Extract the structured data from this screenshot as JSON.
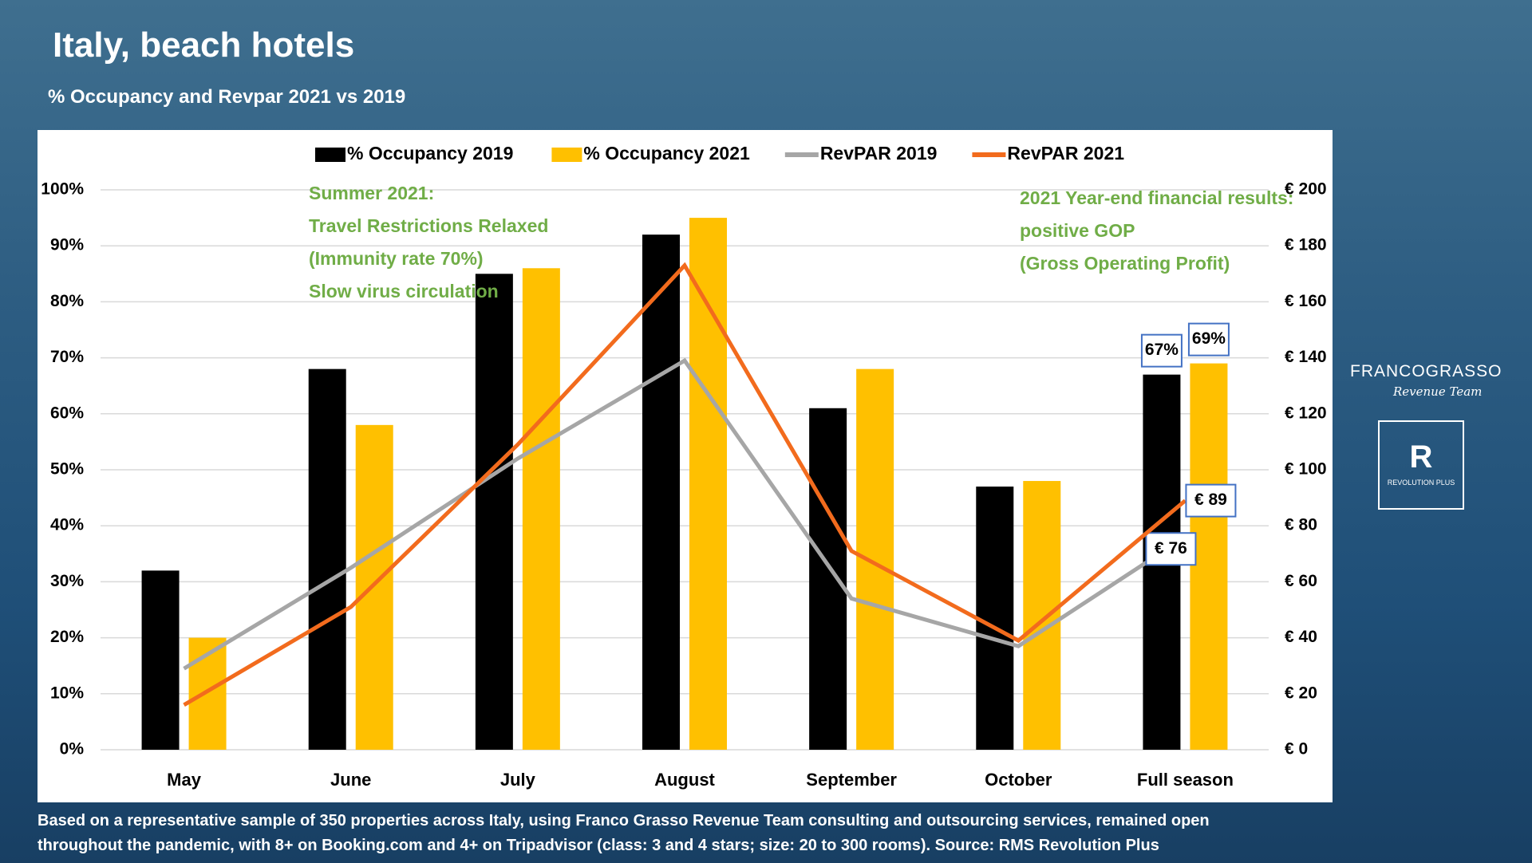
{
  "header": {
    "title": "Italy, beach hotels",
    "subtitle": "% Occupancy and Revpar 2021 vs 2019"
  },
  "chart_data": {
    "type": "bar",
    "categories": [
      "May",
      "June",
      "July",
      "August",
      "September",
      "October",
      "Full season"
    ],
    "series": [
      {
        "name": "% Occupancy 2019",
        "type": "bar",
        "color": "#000000",
        "values": [
          32,
          68,
          85,
          92,
          61,
          47,
          67
        ],
        "value_labels": [
          null,
          null,
          null,
          null,
          null,
          null,
          "67%"
        ]
      },
      {
        "name": "% Occupancy 2021",
        "type": "bar",
        "color": "#ffc000",
        "values": [
          20,
          58,
          86,
          95,
          68,
          48,
          69
        ],
        "value_labels": [
          null,
          null,
          null,
          null,
          null,
          null,
          "69%"
        ]
      },
      {
        "name": "RevPAR 2019",
        "type": "line",
        "axis": "y2",
        "color": "#a6a6a6",
        "values": [
          29,
          65,
          104,
          139,
          54,
          37,
          76
        ],
        "value_labels": [
          null,
          null,
          null,
          null,
          null,
          null,
          "€ 76"
        ]
      },
      {
        "name": "RevPAR 2021",
        "type": "line",
        "axis": "y2",
        "color": "#f26b1d",
        "values": [
          16,
          51,
          109,
          173,
          71,
          39,
          89
        ],
        "value_labels": [
          null,
          null,
          null,
          null,
          null,
          null,
          "€ 89"
        ]
      }
    ],
    "ylim": [
      0,
      100
    ],
    "yticks": [
      {
        "value": 0,
        "label": "0%"
      },
      {
        "value": 10,
        "label": "10%"
      },
      {
        "value": 20,
        "label": "20%"
      },
      {
        "value": 30,
        "label": "30%"
      },
      {
        "value": 40,
        "label": "40%"
      },
      {
        "value": 50,
        "label": "50%"
      },
      {
        "value": 60,
        "label": "60%"
      },
      {
        "value": 70,
        "label": "70%"
      },
      {
        "value": 80,
        "label": "80%"
      },
      {
        "value": 90,
        "label": "90%"
      },
      {
        "value": 100,
        "label": "100%"
      }
    ],
    "y2lim": [
      0,
      200
    ],
    "y2ticks": [
      {
        "value": 0,
        "label": "€ 0"
      },
      {
        "value": 20,
        "label": "€ 20"
      },
      {
        "value": 40,
        "label": "€ 40"
      },
      {
        "value": 60,
        "label": "€ 60"
      },
      {
        "value": 80,
        "label": "€ 80"
      },
      {
        "value": 100,
        "label": "€ 100"
      },
      {
        "value": 120,
        "label": "€ 120"
      },
      {
        "value": 140,
        "label": "€ 140"
      },
      {
        "value": 160,
        "label": "€ 160"
      },
      {
        "value": 180,
        "label": "€ 180"
      },
      {
        "value": 200,
        "label": "€ 200"
      }
    ],
    "grid": true,
    "legend": "top",
    "annotations": [
      [
        "Summer 2021:",
        "Travel Restrictions Relaxed",
        "(Immunity rate 70%)",
        "Slow virus circulation"
      ],
      [
        "2021 Year-end financial results:",
        "positive GOP",
        "(Gross Operating Profit)"
      ]
    ]
  },
  "footer": {
    "note": [
      "Based on a representative sample of 350 properties across Italy, using Franco Grasso Revenue Team consulting and outsourcing services, remained open",
      "throughout the pandemic, with 8+ on Booking.com and 4+ on Tripadvisor (class: 3 and 4 stars; size: 20 to 300 rooms). Source: RMS Revolution Plus"
    ]
  },
  "branding": {
    "logo1": "FRANCOGRASSO",
    "logo1_sub": "Revenue Team",
    "logo2": "R",
    "logo2_sub": "REVOLUTION PLUS"
  }
}
